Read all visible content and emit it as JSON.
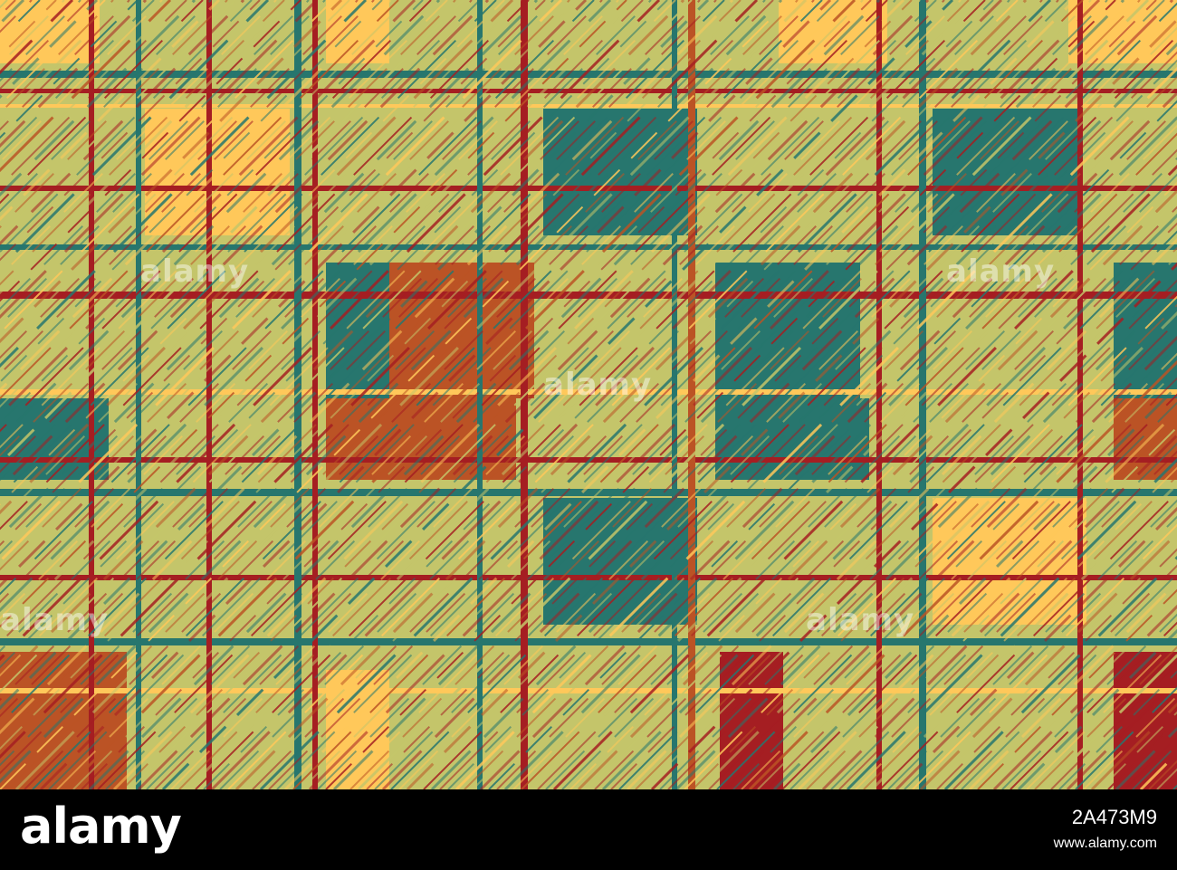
{
  "colors": {
    "yellow": "#FFC85A",
    "olive": "#C4C56A",
    "teal": "#27766E",
    "orange": "#BB5325",
    "red": "#A51E22"
  },
  "watermarks": [
    "alamy",
    "alamy",
    "alamy",
    "alamy",
    "alamy"
  ],
  "footer": {
    "logo": "alamy",
    "image_id": "2A473M9",
    "site": "www.alamy.com"
  }
}
